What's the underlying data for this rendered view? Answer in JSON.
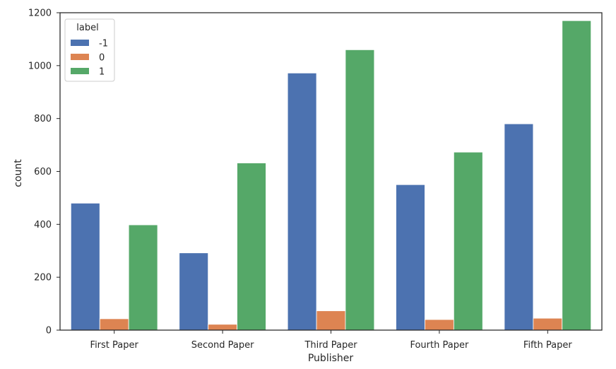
{
  "chart_data": {
    "type": "bar",
    "title": "",
    "xlabel": "Publisher",
    "ylabel": "count",
    "categories": [
      "First Paper",
      "Second Paper",
      "Third Paper",
      "Fourth Paper",
      "Fifth Paper"
    ],
    "series": [
      {
        "name": "-1",
        "color": "#4c72b0",
        "values": [
          480,
          292,
          972,
          550,
          780
        ]
      },
      {
        "name": "0",
        "color": "#dd8452",
        "values": [
          43,
          22,
          73,
          40,
          45
        ]
      },
      {
        "name": "1",
        "color": "#55a868",
        "values": [
          398,
          632,
          1060,
          673,
          1170
        ]
      }
    ],
    "ylim": [
      0,
      1200
    ],
    "yticks": [
      0,
      200,
      400,
      600,
      800,
      1000,
      1200
    ],
    "ytick_labels": [
      "0",
      "200",
      "400",
      "600",
      "800",
      "1000",
      "1200"
    ],
    "grid": false,
    "legend": {
      "title": "label",
      "placement": "top-left"
    }
  }
}
